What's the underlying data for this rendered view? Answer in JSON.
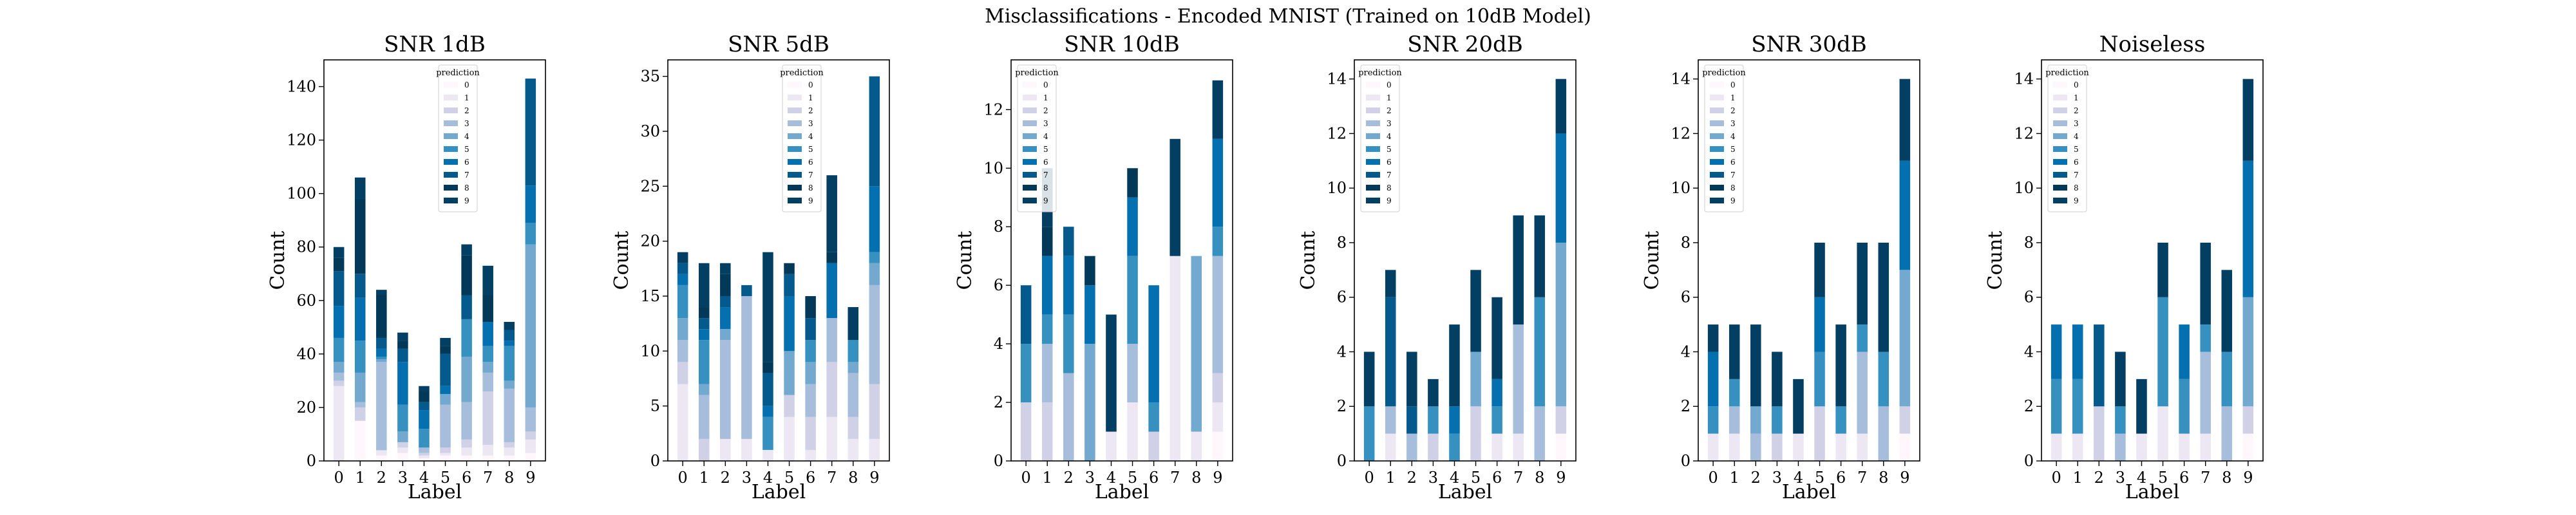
{
  "figure": {
    "title": "Misclassifications - Encoded MNIST (Trained on 10dB Model)"
  },
  "colors": [
    "#fff7fb",
    "#ece7f2",
    "#d0d1e6",
    "#a6bddb",
    "#74a9cf",
    "#3690c0",
    "#0570b0",
    "#045a8d",
    "#023858",
    "#023f62"
  ],
  "chart_data": [
    {
      "type": "bar",
      "stacked": true,
      "title": "SNR 1dB",
      "xlabel": "Label",
      "ylabel": "Count",
      "categories": [
        "0",
        "1",
        "2",
        "3",
        "4",
        "5",
        "6",
        "7",
        "8",
        "9"
      ],
      "ylim": [
        0,
        150
      ],
      "yticks": [
        0,
        20,
        40,
        60,
        80,
        100,
        120,
        140
      ],
      "legend": {
        "title": "prediction",
        "position": "top-center"
      },
      "series": [
        {
          "name": "0",
          "values": [
            0,
            15,
            2,
            3,
            1,
            2,
            2,
            2,
            2,
            3
          ]
        },
        {
          "name": "1",
          "values": [
            28,
            0,
            2,
            2,
            1,
            1,
            3,
            4,
            3,
            5
          ]
        },
        {
          "name": "2",
          "values": [
            2,
            5,
            0,
            2,
            1,
            2,
            3,
            20,
            2,
            3
          ]
        },
        {
          "name": "3",
          "values": [
            3,
            2,
            33,
            0,
            2,
            16,
            14,
            7,
            20,
            9
          ]
        },
        {
          "name": "4",
          "values": [
            4,
            11,
            1,
            4,
            0,
            4,
            17,
            4,
            3,
            61
          ]
        },
        {
          "name": "5",
          "values": [
            9,
            12,
            1,
            10,
            7,
            0,
            14,
            6,
            13,
            8
          ]
        },
        {
          "name": "6",
          "values": [
            12,
            16,
            3,
            16,
            7,
            3,
            0,
            9,
            2,
            14
          ]
        },
        {
          "name": "7",
          "values": [
            13,
            9,
            4,
            5,
            3,
            12,
            9,
            0,
            4,
            40
          ]
        },
        {
          "name": "8",
          "values": [
            5,
            28,
            16,
            3,
            4,
            3,
            15,
            10,
            0,
            0
          ]
        },
        {
          "name": "9",
          "values": [
            4,
            8,
            2,
            3,
            2,
            3,
            4,
            11,
            3,
            0
          ]
        }
      ]
    },
    {
      "type": "bar",
      "stacked": true,
      "title": "SNR 5dB",
      "xlabel": "Label",
      "ylabel": "Count",
      "categories": [
        "0",
        "1",
        "2",
        "3",
        "4",
        "5",
        "6",
        "7",
        "8",
        "9"
      ],
      "ylim": [
        0,
        36.5
      ],
      "yticks": [
        0,
        5,
        10,
        15,
        20,
        25,
        30,
        35
      ],
      "legend": {
        "title": "prediction",
        "position": "top-center"
      },
      "series": [
        {
          "name": "0",
          "values": [
            0,
            0,
            0,
            0,
            0,
            0,
            0,
            0,
            0,
            0
          ]
        },
        {
          "name": "1",
          "values": [
            7,
            0,
            2,
            2,
            1,
            4,
            1,
            4,
            2,
            2
          ]
        },
        {
          "name": "2",
          "values": [
            2,
            2,
            0,
            0,
            0,
            2,
            3,
            5,
            2,
            5
          ]
        },
        {
          "name": "3",
          "values": [
            2,
            4,
            9,
            13,
            0,
            0,
            3,
            4,
            4,
            9
          ]
        },
        {
          "name": "4",
          "values": [
            2,
            1,
            1,
            0,
            0,
            4,
            2,
            0,
            1,
            2
          ]
        },
        {
          "name": "5",
          "values": [
            3,
            4,
            0,
            0,
            3,
            0,
            2,
            0,
            2,
            1
          ]
        },
        {
          "name": "6",
          "values": [
            1,
            1,
            2,
            0,
            1,
            5,
            0,
            5,
            0,
            6
          ]
        },
        {
          "name": "7",
          "values": [
            1,
            1,
            1,
            1,
            3,
            2,
            2,
            0,
            0,
            10
          ]
        },
        {
          "name": "8",
          "values": [
            0,
            1,
            2,
            0,
            1,
            1,
            2,
            1,
            0,
            0
          ]
        },
        {
          "name": "9",
          "values": [
            1,
            4,
            1,
            0,
            10,
            0,
            0,
            7,
            3,
            0
          ]
        }
      ]
    },
    {
      "type": "bar",
      "stacked": true,
      "title": "SNR 10dB",
      "xlabel": "Label",
      "ylabel": "Count",
      "categories": [
        "0",
        "1",
        "2",
        "3",
        "4",
        "5",
        "6",
        "7",
        "8",
        "9"
      ],
      "ylim": [
        0,
        13.7
      ],
      "yticks": [
        0,
        2,
        4,
        6,
        8,
        10,
        12
      ],
      "legend": {
        "title": "prediction",
        "position": "top-left"
      },
      "series": [
        {
          "name": "0",
          "values": [
            0,
            0,
            0,
            0,
            0,
            0,
            0,
            0,
            0,
            1
          ]
        },
        {
          "name": "1",
          "values": [
            0,
            0,
            0,
            0,
            1,
            2,
            0,
            7,
            1,
            1
          ]
        },
        {
          "name": "2",
          "values": [
            2,
            2,
            0,
            0,
            0,
            0,
            1,
            0,
            0,
            1
          ]
        },
        {
          "name": "3",
          "values": [
            0,
            2,
            3,
            0,
            0,
            2,
            0,
            0,
            0,
            4
          ]
        },
        {
          "name": "4",
          "values": [
            0,
            0,
            0,
            4,
            0,
            0,
            0,
            0,
            6,
            0
          ]
        },
        {
          "name": "5",
          "values": [
            2,
            1,
            2,
            0,
            0,
            3,
            1,
            0,
            0,
            1
          ]
        },
        {
          "name": "6",
          "values": [
            0,
            2,
            2,
            2,
            0,
            2,
            4,
            0,
            0,
            3
          ]
        },
        {
          "name": "7",
          "values": [
            2,
            0,
            1,
            0,
            0,
            0,
            0,
            0,
            0,
            0
          ]
        },
        {
          "name": "8",
          "values": [
            0,
            1,
            0,
            1,
            0,
            1,
            0,
            0,
            0,
            0
          ]
        },
        {
          "name": "9",
          "values": [
            0,
            2,
            0,
            0,
            4,
            0,
            0,
            4,
            0,
            2
          ]
        }
      ]
    },
    {
      "type": "bar",
      "stacked": true,
      "title": "SNR 20dB",
      "xlabel": "Label",
      "ylabel": "Count",
      "categories": [
        "0",
        "1",
        "2",
        "3",
        "4",
        "5",
        "6",
        "7",
        "8",
        "9"
      ],
      "ylim": [
        0,
        14.7
      ],
      "yticks": [
        0,
        2,
        4,
        6,
        8,
        10,
        12,
        14
      ],
      "legend": {
        "title": "prediction",
        "position": "top-left"
      },
      "series": [
        {
          "name": "0",
          "values": [
            0,
            0,
            0,
            0,
            0,
            0,
            0,
            0,
            0,
            1
          ]
        },
        {
          "name": "1",
          "values": [
            0,
            1,
            0,
            0,
            0,
            0,
            1,
            1,
            0,
            0
          ]
        },
        {
          "name": "2",
          "values": [
            0,
            0,
            0,
            1,
            0,
            2,
            0,
            0,
            0,
            1
          ]
        },
        {
          "name": "3",
          "values": [
            0,
            1,
            1,
            0,
            0,
            0,
            0,
            4,
            2,
            0
          ]
        },
        {
          "name": "4",
          "values": [
            0,
            0,
            0,
            0,
            0,
            2,
            0,
            0,
            0,
            6
          ]
        },
        {
          "name": "5",
          "values": [
            2,
            0,
            0,
            1,
            1,
            0,
            1,
            0,
            4,
            0
          ]
        },
        {
          "name": "6",
          "values": [
            0,
            0,
            0,
            0,
            1,
            0,
            1,
            0,
            0,
            4
          ]
        },
        {
          "name": "7",
          "values": [
            0,
            4,
            1,
            0,
            0,
            0,
            0,
            0,
            0,
            0
          ]
        },
        {
          "name": "8",
          "values": [
            0,
            0,
            0,
            0,
            0,
            0,
            0,
            0,
            0,
            0
          ]
        },
        {
          "name": "9",
          "values": [
            2,
            1,
            2,
            1,
            3,
            3,
            3,
            4,
            3,
            2
          ]
        }
      ]
    },
    {
      "type": "bar",
      "stacked": true,
      "title": "SNR 30dB",
      "xlabel": "Label",
      "ylabel": "Count",
      "categories": [
        "0",
        "1",
        "2",
        "3",
        "4",
        "5",
        "6",
        "7",
        "8",
        "9"
      ],
      "ylim": [
        0,
        14.7
      ],
      "yticks": [
        0,
        2,
        4,
        6,
        8,
        10,
        12,
        14
      ],
      "legend": {
        "title": "prediction",
        "position": "top-left"
      },
      "series": [
        {
          "name": "0",
          "values": [
            0,
            0,
            0,
            0,
            0,
            0,
            0,
            0,
            0,
            1
          ]
        },
        {
          "name": "1",
          "values": [
            1,
            1,
            0,
            0,
            1,
            0,
            1,
            1,
            0,
            0
          ]
        },
        {
          "name": "2",
          "values": [
            0,
            0,
            0,
            1,
            0,
            2,
            0,
            0,
            0,
            1
          ]
        },
        {
          "name": "3",
          "values": [
            0,
            1,
            1,
            0,
            0,
            0,
            0,
            3,
            2,
            0
          ]
        },
        {
          "name": "4",
          "values": [
            0,
            0,
            1,
            0,
            0,
            0,
            0,
            0,
            0,
            5
          ]
        },
        {
          "name": "5",
          "values": [
            1,
            1,
            0,
            1,
            0,
            2,
            1,
            1,
            2,
            0
          ]
        },
        {
          "name": "6",
          "values": [
            2,
            0,
            0,
            0,
            0,
            2,
            0,
            0,
            0,
            4
          ]
        },
        {
          "name": "7",
          "values": [
            0,
            0,
            0,
            0,
            0,
            0,
            0,
            0,
            0,
            0
          ]
        },
        {
          "name": "8",
          "values": [
            0,
            0,
            0,
            0,
            0,
            0,
            0,
            0,
            0,
            0
          ]
        },
        {
          "name": "9",
          "values": [
            1,
            2,
            3,
            2,
            2,
            2,
            3,
            3,
            4,
            3
          ]
        }
      ]
    },
    {
      "type": "bar",
      "stacked": true,
      "title": "Noiseless",
      "xlabel": "Label",
      "ylabel": "Count",
      "categories": [
        "0",
        "1",
        "2",
        "3",
        "4",
        "5",
        "6",
        "7",
        "8",
        "9"
      ],
      "ylim": [
        0,
        14.7
      ],
      "yticks": [
        0,
        2,
        4,
        6,
        8,
        10,
        12,
        14
      ],
      "legend": {
        "title": "prediction",
        "position": "top-left"
      },
      "series": [
        {
          "name": "0",
          "values": [
            0,
            0,
            0,
            0,
            0,
            0,
            0,
            0,
            0,
            1
          ]
        },
        {
          "name": "1",
          "values": [
            1,
            1,
            0,
            0,
            1,
            2,
            1,
            1,
            0,
            0
          ]
        },
        {
          "name": "2",
          "values": [
            0,
            0,
            2,
            0,
            0,
            0,
            0,
            0,
            0,
            1
          ]
        },
        {
          "name": "3",
          "values": [
            0,
            0,
            0,
            1,
            0,
            0,
            0,
            3,
            2,
            0
          ]
        },
        {
          "name": "4",
          "values": [
            0,
            0,
            0,
            0,
            0,
            0,
            0,
            0,
            0,
            4
          ]
        },
        {
          "name": "5",
          "values": [
            2,
            2,
            0,
            1,
            0,
            4,
            2,
            1,
            2,
            0
          ]
        },
        {
          "name": "6",
          "values": [
            2,
            2,
            0,
            0,
            0,
            0,
            2,
            0,
            0,
            5
          ]
        },
        {
          "name": "7",
          "values": [
            0,
            0,
            3,
            0,
            0,
            0,
            0,
            0,
            0,
            0
          ]
        },
        {
          "name": "8",
          "values": [
            0,
            0,
            0,
            0,
            0,
            0,
            0,
            0,
            0,
            0
          ]
        },
        {
          "name": "9",
          "values": [
            0,
            0,
            0,
            2,
            2,
            2,
            0,
            3,
            3,
            3
          ]
        }
      ]
    }
  ]
}
